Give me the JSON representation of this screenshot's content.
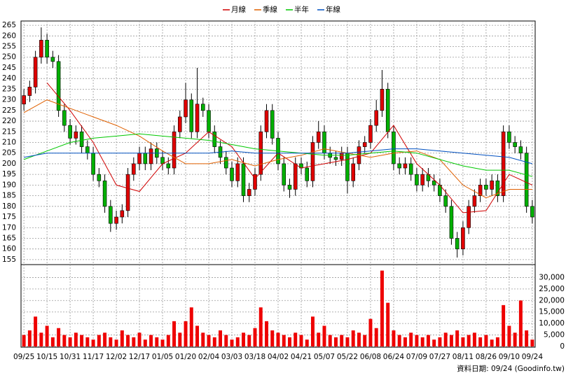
{
  "chart_data": {
    "type": "candlestick",
    "legend": "top",
    "source": "資料日期: 09/24 (Goodinfo.tw)",
    "up_color": "#e00000",
    "down_color": "#00b000",
    "volume_color": "#ee0000",
    "grid": true,
    "xlim": [
      -0.5,
      88.5
    ],
    "xticks": [
      {
        "value": 0,
        "label": "09/25"
      },
      {
        "value": 4,
        "label": "10/15"
      },
      {
        "value": 8,
        "label": "10/31"
      },
      {
        "value": 12,
        "label": "11/17"
      },
      {
        "value": 16,
        "label": "12/02"
      },
      {
        "value": 20,
        "label": "12/17"
      },
      {
        "value": 24,
        "label": "01/05"
      },
      {
        "value": 28,
        "label": "01/20"
      },
      {
        "value": 32,
        "label": "02/04"
      },
      {
        "value": 36,
        "label": "03/03"
      },
      {
        "value": 40,
        "label": "03/18"
      },
      {
        "value": 44,
        "label": "04/02"
      },
      {
        "value": 48,
        "label": "04/21"
      },
      {
        "value": 52,
        "label": "05/07"
      },
      {
        "value": 56,
        "label": "05/22"
      },
      {
        "value": 60,
        "label": "06/08"
      },
      {
        "value": 64,
        "label": "06/24"
      },
      {
        "value": 68,
        "label": "07/09"
      },
      {
        "value": 72,
        "label": "07/27"
      },
      {
        "value": 76,
        "label": "08/11"
      },
      {
        "value": 80,
        "label": "08/26"
      },
      {
        "value": 84,
        "label": "09/10"
      },
      {
        "value": 88,
        "label": "09/24"
      }
    ],
    "ylim": [
      153,
      267
    ],
    "yticks": [
      155,
      160,
      165,
      170,
      175,
      180,
      185,
      190,
      195,
      200,
      205,
      210,
      215,
      220,
      225,
      230,
      235,
      240,
      245,
      250,
      255,
      260,
      265
    ],
    "y2lim": [
      0,
      35000
    ],
    "y2ticks": [
      0,
      {
        "value": 5000,
        "label": "5,000"
      },
      {
        "value": 10000,
        "label": "10,000"
      },
      {
        "value": 15000,
        "label": "15,000"
      },
      {
        "value": 20000,
        "label": "20,000"
      },
      {
        "value": 25000,
        "label": "25,000"
      },
      {
        "value": 30000,
        "label": "30,000"
      }
    ],
    "open": [
      228,
      232,
      236,
      250,
      258,
      250,
      248,
      225,
      218,
      212,
      215,
      208,
      205,
      195,
      192,
      180,
      172,
      175,
      178,
      195,
      200,
      205,
      200,
      207,
      203,
      200,
      198,
      215,
      222,
      230,
      215,
      228,
      225,
      215,
      208,
      203,
      198,
      192,
      200,
      185,
      188,
      195,
      215,
      225,
      212,
      200,
      190,
      188,
      200,
      198,
      192,
      210,
      215,
      205,
      203,
      202,
      205,
      192,
      200,
      208,
      210,
      218,
      225,
      235,
      215,
      200,
      198,
      200,
      195,
      190,
      195,
      192,
      190,
      185,
      180,
      165,
      160,
      170,
      180,
      185,
      190,
      188,
      192,
      185,
      215,
      210,
      208,
      205,
      180
    ],
    "high": [
      235,
      239,
      253,
      264,
      261,
      253,
      251,
      228,
      221,
      218,
      218,
      211,
      208,
      198,
      195,
      183,
      178,
      181,
      198,
      203,
      208,
      208,
      210,
      210,
      206,
      203,
      218,
      225,
      238,
      233,
      245,
      231,
      228,
      218,
      211,
      206,
      201,
      203,
      203,
      191,
      198,
      218,
      228,
      228,
      215,
      203,
      193,
      203,
      203,
      201,
      213,
      220,
      218,
      208,
      206,
      208,
      208,
      203,
      211,
      213,
      221,
      230,
      244,
      238,
      218,
      203,
      203,
      203,
      198,
      198,
      198,
      195,
      193,
      188,
      183,
      168,
      173,
      183,
      188,
      193,
      193,
      195,
      195,
      218,
      218,
      213,
      211,
      208,
      183
    ],
    "low": [
      225,
      229,
      233,
      247,
      247,
      245,
      222,
      215,
      209,
      209,
      205,
      202,
      192,
      189,
      177,
      168,
      169,
      172,
      175,
      192,
      197,
      197,
      197,
      200,
      197,
      195,
      195,
      212,
      219,
      212,
      212,
      222,
      212,
      205,
      200,
      195,
      189,
      189,
      182,
      182,
      185,
      192,
      212,
      209,
      197,
      187,
      184,
      185,
      195,
      189,
      189,
      207,
      202,
      200,
      199,
      199,
      186,
      189,
      197,
      205,
      207,
      215,
      222,
      212,
      197,
      195,
      195,
      192,
      187,
      187,
      189,
      187,
      182,
      177,
      162,
      156,
      157,
      167,
      177,
      182,
      185,
      185,
      182,
      182,
      207,
      205,
      202,
      177,
      172
    ],
    "close": [
      232,
      236,
      250,
      258,
      250,
      248,
      225,
      218,
      212,
      215,
      208,
      205,
      195,
      192,
      180,
      172,
      175,
      178,
      195,
      200,
      205,
      200,
      207,
      203,
      200,
      198,
      215,
      222,
      230,
      215,
      228,
      225,
      215,
      208,
      203,
      198,
      192,
      200,
      185,
      188,
      195,
      215,
      225,
      212,
      200,
      190,
      188,
      200,
      198,
      192,
      210,
      215,
      205,
      203,
      202,
      205,
      192,
      200,
      208,
      210,
      218,
      225,
      235,
      215,
      200,
      198,
      200,
      195,
      190,
      195,
      192,
      190,
      185,
      180,
      165,
      160,
      170,
      180,
      185,
      190,
      188,
      192,
      185,
      215,
      210,
      208,
      205,
      180,
      175
    ],
    "volume": [
      5000,
      7000,
      13000,
      6000,
      9000,
      4000,
      8000,
      5000,
      4000,
      6000,
      5000,
      4000,
      3000,
      5000,
      6000,
      4000,
      3000,
      7000,
      5000,
      4000,
      6000,
      3000,
      5000,
      4000,
      3000,
      5000,
      11000,
      6000,
      11000,
      17000,
      9000,
      6000,
      5000,
      4000,
      7000,
      5000,
      3000,
      4000,
      6000,
      5000,
      8000,
      17000,
      11000,
      7000,
      6000,
      5000,
      4000,
      6000,
      5000,
      3000,
      13000,
      6000,
      9000,
      5000,
      4000,
      5000,
      4000,
      7000,
      6000,
      5000,
      12000,
      8000,
      33000,
      19000,
      7000,
      5000,
      4000,
      6000,
      5000,
      4000,
      5000,
      3000,
      4000,
      6000,
      5000,
      7000,
      4000,
      5000,
      6000,
      4000,
      5000,
      3000,
      4000,
      18000,
      9000,
      6000,
      20000,
      7000,
      3000
    ],
    "series": [
      {
        "name": "月線",
        "color": "#d00000",
        "x": [
          4,
          8,
          12,
          16,
          20,
          24,
          28,
          32,
          36,
          40,
          44,
          48,
          52,
          56,
          60,
          64,
          68,
          72,
          76,
          80,
          84,
          88
        ],
        "values": [
          238,
          225,
          210,
          190,
          187,
          200,
          205,
          215,
          208,
          193,
          205,
          198,
          200,
          202,
          205,
          218,
          200,
          190,
          177,
          178,
          195,
          190
        ]
      },
      {
        "name": "季線",
        "color": "#e06000",
        "x": [
          0,
          4,
          8,
          12,
          16,
          20,
          24,
          28,
          32,
          36,
          40,
          44,
          48,
          52,
          56,
          60,
          64,
          68,
          72,
          76,
          80,
          84,
          88
        ],
        "values": [
          224,
          230,
          226,
          222,
          218,
          213,
          206,
          200,
          200,
          202,
          199,
          202,
          204,
          207,
          205,
          203,
          205,
          206,
          202,
          190,
          184,
          188,
          188
        ]
      },
      {
        "name": "半年",
        "color": "#00c800",
        "x": [
          0,
          4,
          8,
          12,
          16,
          20,
          24,
          28,
          32,
          36,
          40,
          44,
          48,
          52,
          56,
          60,
          64,
          68,
          72,
          76,
          80,
          84,
          88
        ],
        "values": [
          202,
          206,
          210,
          212,
          213,
          214,
          213,
          212,
          211,
          209,
          207,
          206,
          205,
          204,
          204,
          205,
          206,
          205,
          202,
          199,
          197,
          197,
          194
        ]
      },
      {
        "name": "年線",
        "color": "#0050c0",
        "x": [
          0,
          4,
          8,
          12,
          16,
          20,
          24,
          28,
          32,
          36,
          40,
          44,
          48,
          52,
          56,
          60,
          64,
          68,
          72,
          76,
          80,
          84,
          88
        ],
        "values": [
          203,
          205,
          205,
          205,
          205,
          205,
          205,
          205,
          205,
          206,
          205,
          205,
          205,
          205,
          205,
          206,
          207,
          207,
          206,
          205,
          204,
          203,
          200
        ]
      }
    ]
  }
}
